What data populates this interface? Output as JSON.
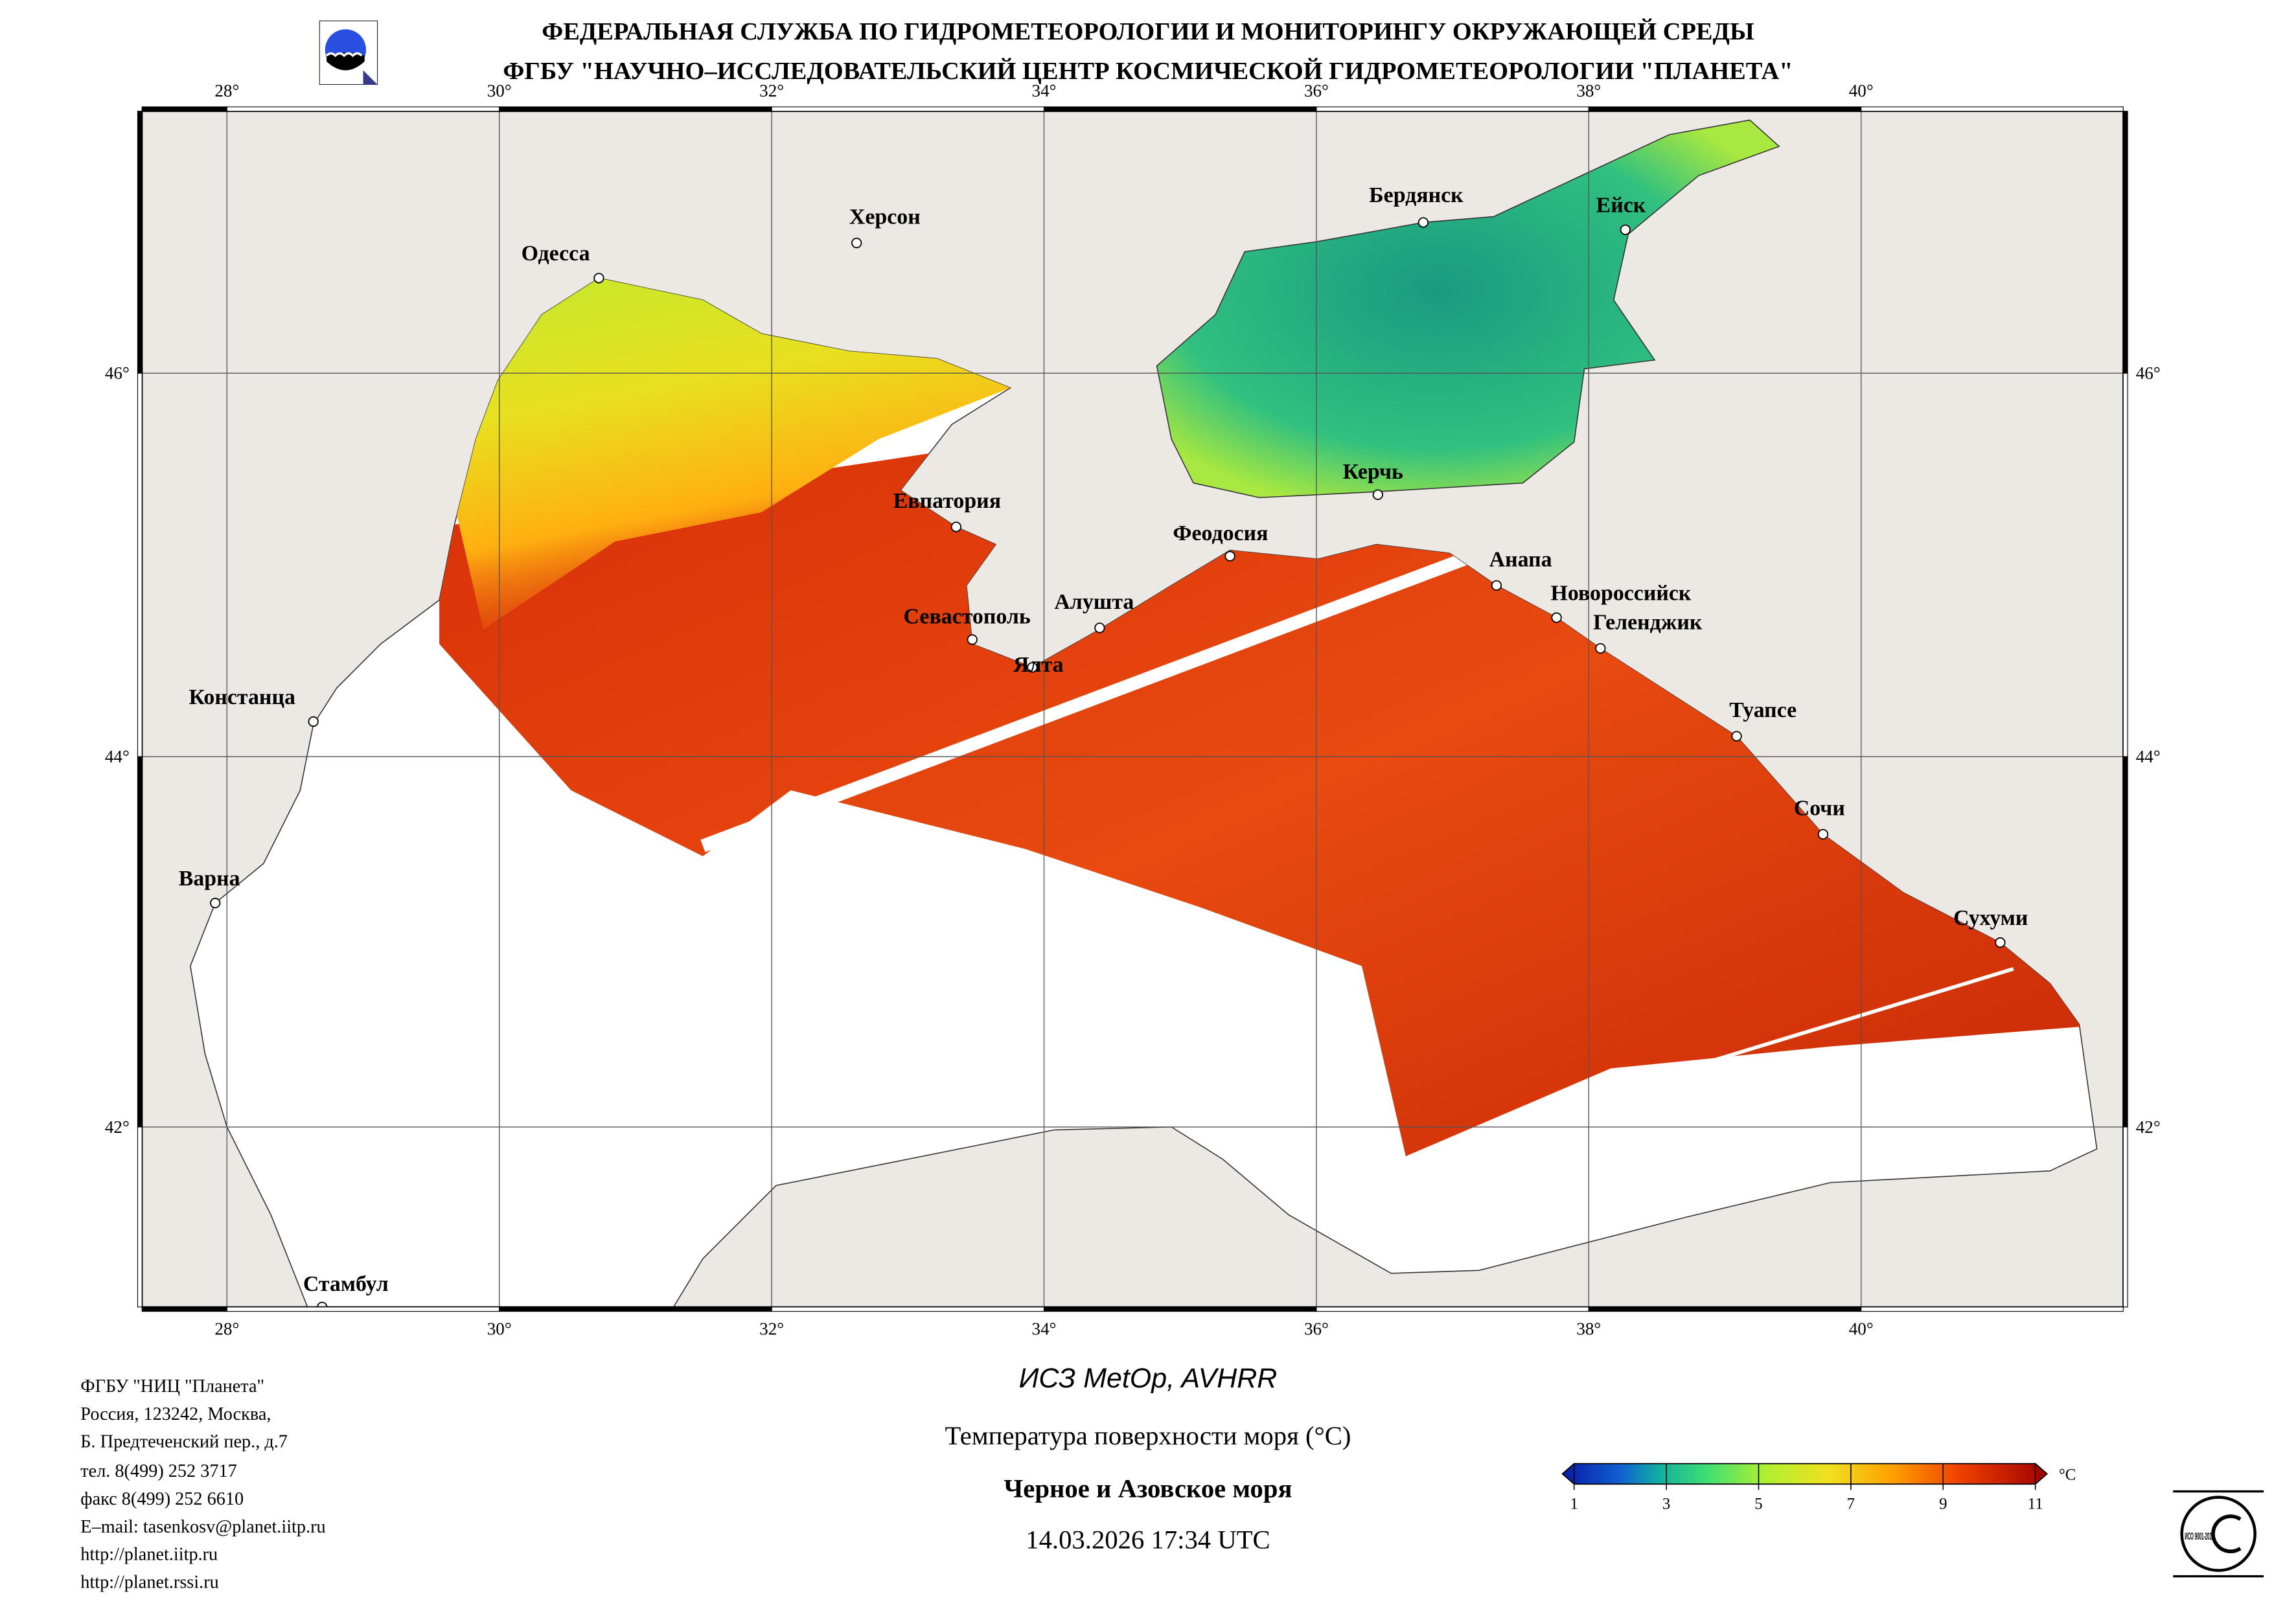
{
  "header": {
    "line1": "ФЕДЕРАЛЬНАЯ СЛУЖБА ПО ГИДРОМЕТЕОРОЛОГИИ И МОНИТОРИНГУ ОКРУЖАЮЩЕЙ СРЕДЫ",
    "line2": "ФГБУ \"НАУЧНО–ИССЛЕДОВАТЕЛЬСКИЙ ЦЕНТР КОСМИЧЕСКОЙ ГИДРОМЕТЕОРОЛОГИИ \"ПЛАНЕТА\"",
    "logo_icon": "planeta-logo"
  },
  "map": {
    "lon_labels": [
      "28°",
      "30°",
      "32°",
      "34°",
      "36°",
      "38°",
      "40°"
    ],
    "lat_labels": [
      "46°",
      "44°",
      "42°"
    ],
    "cities": [
      "Одесса",
      "Херсон",
      "Бердянск",
      "Ейск",
      "Керчь",
      "Евпатория",
      "Феодосия",
      "Анапа",
      "Севастополь",
      "Алушта",
      "Ялта",
      "Новороссийск",
      "Геленджик",
      "Туапсе",
      "Сочи",
      "Сухуми",
      "Констанца",
      "Варна",
      "Стамбул"
    ],
    "colors": {
      "land": "#ece9e5",
      "sea": "#ffffff",
      "azov": "#2fbf80",
      "warm": "#e04010",
      "cool": "#c8e830"
    }
  },
  "footer": {
    "contact": [
      "ФГБУ \"НИЦ \"Планета\"",
      "Россия, 123242, Москва,",
      "Б. Предтеченский пер., д.7",
      "тел. 8(499) 252 3717",
      "факс 8(499) 252 6610",
      "E–mail: tasenkosv@planet.iitp.ru",
      "http://planet.iitp.ru",
      "http://planet.rssi.ru"
    ],
    "satellite": "ИСЗ MetOp, AVHRR",
    "product": "Температура поверхности моря (°C)",
    "region": "Черное и Азовское моря",
    "datetime": "14.03.2026 17:34 UTC",
    "iso_badge": "ИСО 9001-2015"
  },
  "colorbar": {
    "unit": "°C",
    "ticks": [
      "1",
      "3",
      "5",
      "7",
      "9",
      "11"
    ],
    "range": [
      1,
      11
    ]
  }
}
